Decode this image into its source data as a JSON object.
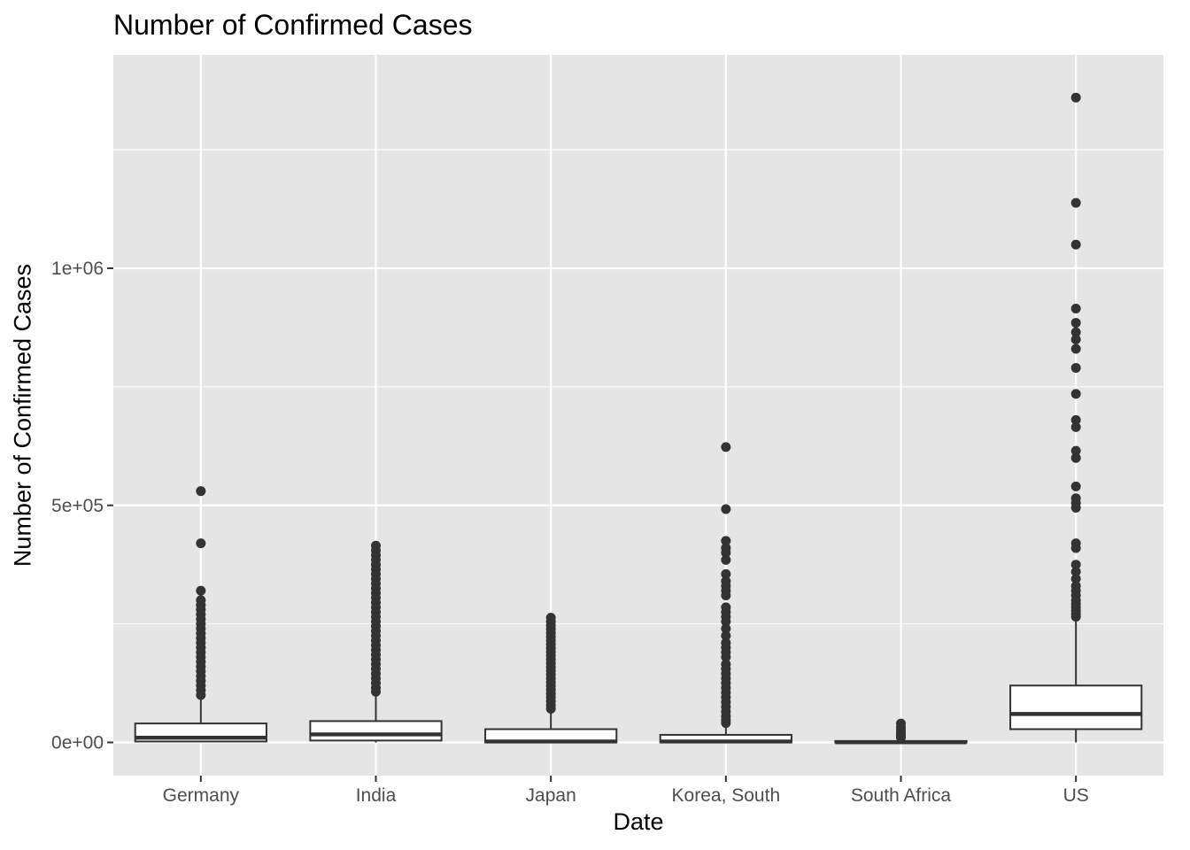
{
  "chart_data": {
    "type": "box",
    "title": "Number of Confirmed Cases",
    "xlabel": "Date",
    "ylabel": "Number of Confirmed Cases",
    "ylim": [
      -70000,
      1450000
    ],
    "y_ticks": [
      0,
      500000,
      1000000
    ],
    "y_tick_labels": [
      "0e+00",
      "5e+05",
      "1e+06"
    ],
    "grid": true,
    "categories": [
      "Germany",
      "India",
      "Japan",
      "Korea, South",
      "South Africa",
      "US"
    ],
    "boxes": [
      {
        "category": "Germany",
        "min": 0,
        "q1": 2000,
        "median": 10000,
        "q3": 40000,
        "max": 97000,
        "outliers": [
          530000,
          420000,
          320000,
          300000,
          290000,
          280000,
          270000,
          260000,
          250000,
          240000,
          230000,
          220000,
          210000,
          200000,
          190000,
          180000,
          170000,
          160000,
          150000,
          140000,
          130000,
          120000,
          110000,
          100000
        ]
      },
      {
        "category": "India",
        "min": 0,
        "q1": 4000,
        "median": 17000,
        "q3": 45000,
        "max": 105000,
        "outliers": [
          415000,
          405000,
          395000,
          385000,
          375000,
          365000,
          355000,
          345000,
          335000,
          325000,
          315000,
          305000,
          295000,
          285000,
          275000,
          265000,
          255000,
          245000,
          235000,
          225000,
          215000,
          205000,
          195000,
          185000,
          175000,
          165000,
          155000,
          145000,
          135000,
          125000,
          115000,
          107000
        ]
      },
      {
        "category": "Japan",
        "min": 0,
        "q1": 0,
        "median": 2000,
        "q3": 28000,
        "max": 68000,
        "outliers": [
          263000,
          255000,
          247000,
          239000,
          231000,
          223000,
          215000,
          207000,
          199000,
          191000,
          183000,
          175000,
          167000,
          159000,
          151000,
          143000,
          135000,
          127000,
          119000,
          111000,
          103000,
          95000,
          87000,
          79000,
          71000
        ]
      },
      {
        "category": "Korea, South",
        "min": 0,
        "q1": 0,
        "median": 2000,
        "q3": 16000,
        "max": 38000,
        "outliers": [
          623000,
          492000,
          425000,
          410000,
          400000,
          385000,
          355000,
          340000,
          330000,
          320000,
          310000,
          285000,
          275000,
          265000,
          255000,
          240000,
          225000,
          210000,
          200000,
          190000,
          180000,
          165000,
          155000,
          145000,
          135000,
          125000,
          115000,
          105000,
          95000,
          85000,
          75000,
          65000,
          55000,
          47000,
          41000
        ]
      },
      {
        "category": "South Africa",
        "min": 0,
        "q1": 0,
        "median": 500,
        "q3": 3000,
        "max": 8000,
        "outliers": [
          40000,
          32000,
          26000,
          20000,
          16000,
          12000,
          10000
        ]
      },
      {
        "category": "US",
        "min": 0,
        "q1": 28000,
        "median": 60000,
        "q3": 120000,
        "max": 255000,
        "outliers": [
          1360000,
          1138000,
          1050000,
          915000,
          885000,
          865000,
          850000,
          830000,
          790000,
          735000,
          680000,
          665000,
          615000,
          600000,
          540000,
          515000,
          505000,
          495000,
          420000,
          410000,
          375000,
          360000,
          345000,
          330000,
          320000,
          310000,
          300000,
          292000,
          285000,
          278000,
          271000,
          265000
        ]
      }
    ]
  }
}
